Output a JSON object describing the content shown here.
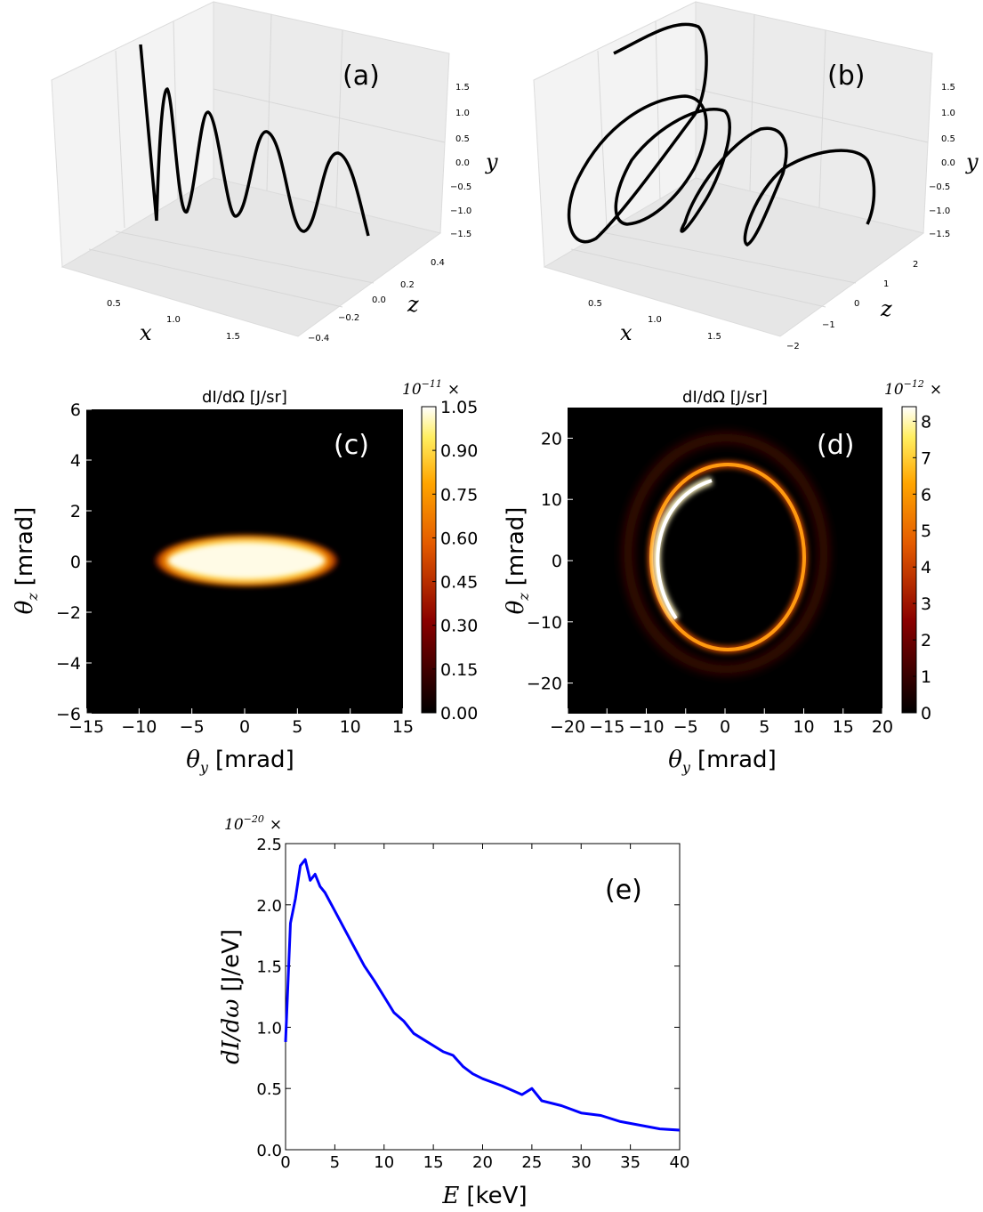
{
  "panels": {
    "a": {
      "panel_label": "(a)",
      "axes": {
        "x": "x",
        "y": "y",
        "z": "z"
      },
      "x_ticks": [
        "0.5",
        "1.0",
        "1.5"
      ],
      "y_ticks": [
        "1.5",
        "1.0",
        "0.5",
        "0.0",
        "−0.5",
        "−1.0",
        "−1.5"
      ],
      "z_ticks": [
        "0.4",
        "0.2",
        "0.0",
        "−0.2",
        "−0.4"
      ]
    },
    "b": {
      "panel_label": "(b)",
      "axes": {
        "x": "x",
        "y": "y",
        "z": "z"
      },
      "x_ticks": [
        "0.5",
        "1.0",
        "1.5"
      ],
      "y_ticks": [
        "1.5",
        "1.0",
        "0.5",
        "0.0",
        "−0.5",
        "−1.0",
        "−1.5"
      ],
      "z_ticks": [
        "2",
        "1",
        "0",
        "−1",
        "−2"
      ]
    },
    "c": {
      "panel_label": "(c)",
      "title": "dI/dΩ [J/sr]",
      "xlabel_sym": "θ",
      "xlabel_sub": "y",
      "xlabel_unit": "[mrad]",
      "ylabel_sym": "θ",
      "ylabel_sub": "z",
      "ylabel_unit": "[mrad]",
      "colorbar_exp_base": "10",
      "colorbar_exp": "−11",
      "colorbar_times": "×"
    },
    "d": {
      "panel_label": "(d)",
      "title": "dI/dΩ [J/sr]",
      "xlabel_sym": "θ",
      "xlabel_sub": "y",
      "xlabel_unit": "[mrad]",
      "ylabel_sym": "θ",
      "ylabel_sub": "z",
      "ylabel_unit": "[mrad]",
      "colorbar_exp_base": "10",
      "colorbar_exp": "−12",
      "colorbar_times": "×"
    },
    "e": {
      "panel_label": "(e)",
      "xlabel_sym": "E",
      "xlabel_unit": "[keV]",
      "ylabel_sym": "dI/dω",
      "ylabel_unit": "[J/eV]",
      "exp_base": "10",
      "exp": "−20",
      "exp_times": "×"
    }
  },
  "chart_data": [
    {
      "id": "a",
      "type": "line",
      "description_series": "sinusoidal trajectory",
      "series": [
        {
          "x": [
            0.1,
            0.3,
            0.5,
            0.7,
            0.9,
            1.1,
            1.3,
            1.5,
            1.7,
            1.9
          ],
          "y": [
            1.9,
            -1.3,
            1.2,
            -1.1,
            1.1,
            -1.2,
            0.9,
            -1.3,
            0.8,
            -1.4
          ]
        }
      ],
      "xlim": [
        0.1,
        1.9
      ],
      "ylim": [
        -1.5,
        1.9
      ],
      "zlim": [
        -0.5,
        0.5
      ],
      "color": "#000000"
    },
    {
      "id": "b",
      "type": "line",
      "series": [
        {
          "x": [
            0.2,
            0.6,
            1.0,
            1.4,
            1.8
          ],
          "y": [
            1.9,
            0.0,
            0.0,
            0.0,
            -1.4
          ]
        }
      ],
      "xlim": [
        0.1,
        1.9
      ],
      "ylim": [
        -1.5,
        1.9
      ],
      "zlim": [
        -2.5,
        2.5
      ],
      "color": "#000000"
    },
    {
      "id": "c",
      "type": "heatmap",
      "xlim": [
        -15,
        15
      ],
      "ylim": [
        -6,
        6
      ],
      "x_ticks": [
        -15,
        -10,
        -5,
        0,
        5,
        10,
        15
      ],
      "y_ticks": [
        6,
        4,
        2,
        0,
        -2,
        -4,
        -6
      ],
      "colorbar_ticks": [
        "1.05",
        "0.90",
        "0.75",
        "0.60",
        "0.45",
        "0.30",
        "0.15",
        "0.00"
      ],
      "colorbar_range": [
        0,
        1.05
      ],
      "feature": {
        "shape": "ellipse",
        "center": [
          0,
          0
        ],
        "half_width_y": 8.5,
        "half_width_z": 1.2,
        "peak": 1.05
      }
    },
    {
      "id": "d",
      "type": "heatmap",
      "xlim": [
        -20,
        20
      ],
      "ylim": [
        -25,
        25
      ],
      "x_ticks": [
        -20,
        -15,
        -10,
        -5,
        0,
        5,
        10,
        15,
        20
      ],
      "y_ticks": [
        20,
        10,
        0,
        -10,
        -20
      ],
      "colorbar_ticks": [
        "8",
        "7",
        "6",
        "5",
        "4",
        "3",
        "2",
        "1",
        "0"
      ],
      "colorbar_range": [
        0,
        8.4
      ],
      "feature": {
        "shape": "ring",
        "center": [
          1,
          0
        ],
        "radius_y": 9,
        "radius_z": 14,
        "peak": 8.4
      }
    },
    {
      "id": "e",
      "type": "line",
      "x": [
        0,
        0.5,
        1,
        1.5,
        2,
        2.5,
        3,
        3.5,
        4,
        5,
        6,
        7,
        8,
        9,
        10,
        11,
        12,
        13,
        14,
        15,
        16,
        17,
        18,
        19,
        20,
        22,
        24,
        25,
        26,
        28,
        30,
        32,
        34,
        36,
        38,
        40
      ],
      "y": [
        0.88,
        1.85,
        2.05,
        2.32,
        2.37,
        2.2,
        2.25,
        2.15,
        2.1,
        1.95,
        1.8,
        1.65,
        1.5,
        1.38,
        1.25,
        1.12,
        1.05,
        0.95,
        0.9,
        0.85,
        0.8,
        0.77,
        0.68,
        0.62,
        0.58,
        0.52,
        0.45,
        0.5,
        0.4,
        0.36,
        0.3,
        0.28,
        0.23,
        0.2,
        0.17,
        0.16
      ],
      "xlim": [
        0,
        40
      ],
      "ylim": [
        0,
        2.5
      ],
      "x_ticks": [
        0,
        5,
        10,
        15,
        20,
        25,
        30,
        35,
        40
      ],
      "y_ticks": [
        0.0,
        0.5,
        1.0,
        1.5,
        2.0,
        2.5
      ],
      "color": "#0000ff"
    }
  ]
}
